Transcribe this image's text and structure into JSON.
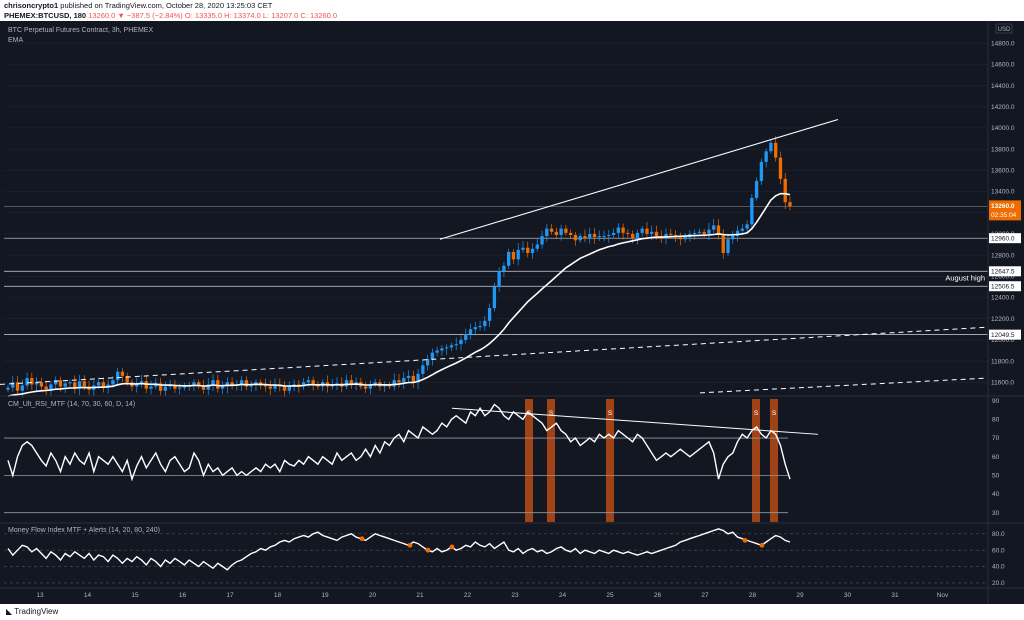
{
  "header": {
    "line1_user": "chrisoncrypto1",
    "line1_rest": "published on TradingView.com, October 28, 2020 13:25:03 CET",
    "line2_symbol": "PHEMEX:BTCUSD, 180",
    "line2_price": "13260.0",
    "line2_change": "▼ −387.5 (−2.84%)",
    "line2_ohlc": "O: 13335.0  H: 13374.0  L: 13207.0  C: 13260.0"
  },
  "footer": {
    "logo_text": "TradingView"
  },
  "colors": {
    "bg": "#131722",
    "up": "#2196f3",
    "down": "#ef6c00",
    "line": "#ffffff",
    "grid": "#1f2433",
    "axis_text": "#b2b5be",
    "signal": "#b84a14",
    "mfi_dot": "#ef6c00"
  },
  "chart_data": [
    {
      "type": "candlestick",
      "title": "BTC Perpetual Futures Contract, 3h, PHEMEX",
      "subtitle": "EMA",
      "currency_label": "USD",
      "ylim": [
        11480,
        15000
      ],
      "y_ticks": [
        11600,
        11800,
        12000,
        12200,
        12400,
        12600,
        12800,
        13000,
        13200,
        13400,
        13600,
        13800,
        14000,
        14200,
        14400,
        14600,
        14800
      ],
      "x_ticks": [
        "13",
        "14",
        "15",
        "16",
        "17",
        "18",
        "19",
        "20",
        "21",
        "22",
        "23",
        "24",
        "25",
        "26",
        "27",
        "28",
        "29",
        "30",
        "31",
        "Nov"
      ],
      "last_price": "13260.0",
      "countdown": "02:35:04",
      "horizontal_levels": [
        "12960.0",
        "12647.5",
        "12506.5",
        "12049.5"
      ],
      "annotation": "August high",
      "close": [
        11550,
        11600,
        11520,
        11570,
        11640,
        11580,
        11600,
        11560,
        11530,
        11580,
        11620,
        11560,
        11590,
        11600,
        11540,
        11610,
        11560,
        11530,
        11570,
        11600,
        11550,
        11580,
        11620,
        11700,
        11660,
        11600,
        11560,
        11580,
        11610,
        11540,
        11560,
        11590,
        11520,
        11560,
        11580,
        11540,
        11550,
        11560,
        11570,
        11600,
        11560,
        11530,
        11580,
        11620,
        11540,
        11560,
        11600,
        11570,
        11580,
        11620,
        11560,
        11580,
        11600,
        11570,
        11560,
        11540,
        11580,
        11560,
        11520,
        11560,
        11580,
        11560,
        11600,
        11620,
        11580,
        11560,
        11600,
        11560,
        11570,
        11590,
        11560,
        11620,
        11580,
        11600,
        11560,
        11540,
        11580,
        11600,
        11560,
        11580,
        11560,
        11620,
        11600,
        11640,
        11660,
        11600,
        11680,
        11760,
        11820,
        11880,
        11900,
        11920,
        11930,
        11950,
        11960,
        12000,
        12050,
        12100,
        12120,
        12130,
        12180,
        12300,
        12500,
        12650,
        12700,
        12830,
        12760,
        12850,
        12870,
        12820,
        12860,
        12900,
        12980,
        13050,
        13020,
        12990,
        13050,
        13010,
        12990,
        12940,
        12980,
        12960,
        13000,
        12970,
        12980,
        12980,
        12990,
        13010,
        13060,
        13010,
        13000,
        12960,
        13010,
        13050,
        13000,
        13020,
        12980,
        12960,
        13000,
        12990,
        12970,
        12950,
        12970,
        13000,
        13010,
        13020,
        13000,
        13040,
        13080,
        12990,
        12820,
        12950,
        12980,
        13030,
        13050,
        13090,
        13340,
        13500,
        13680,
        13780,
        13860,
        13720,
        13520,
        13300,
        13260
      ],
      "ema": [
        11470,
        11480,
        11485,
        11490,
        11500,
        11508,
        11515,
        11520,
        11522,
        11528,
        11535,
        11538,
        11542,
        11546,
        11546,
        11550,
        11550,
        11549,
        11551,
        11554,
        11554,
        11557,
        11563,
        11576,
        11586,
        11588,
        11585,
        11585,
        11588,
        11583,
        11581,
        11582,
        11575,
        11573,
        11574,
        11570,
        11568,
        11567,
        11567,
        11571,
        11570,
        11565,
        11567,
        11574,
        11569,
        11568,
        11572,
        11572,
        11573,
        11580,
        11577,
        11578,
        11581,
        11580,
        11578,
        11573,
        11574,
        11572,
        11566,
        11565,
        11567,
        11566,
        11570,
        11577,
        11577,
        11575,
        11578,
        11576,
        11575,
        11577,
        11575,
        11581,
        11581,
        11583,
        11580,
        11574,
        11575,
        11578,
        11576,
        11576,
        11575,
        11580,
        11583,
        11590,
        11598,
        11598,
        11608,
        11626,
        11647,
        11672,
        11697,
        11720,
        11741,
        11762,
        11782,
        11805,
        11830,
        11857,
        11884,
        11906,
        11932,
        11966,
        12007,
        12050,
        12100,
        12160,
        12210,
        12260,
        12310,
        12360,
        12400,
        12440,
        12480,
        12520,
        12560,
        12600,
        12640,
        12680,
        12710,
        12740,
        12770,
        12790,
        12810,
        12830,
        12850,
        12865,
        12880,
        12890,
        12905,
        12915,
        12925,
        12935,
        12945,
        12955,
        12960,
        12965,
        12970,
        12970,
        12972,
        12974,
        12976,
        12978,
        12980,
        12982,
        12984,
        12986,
        12988,
        12990,
        12995,
        13000,
        12995,
        12990,
        12992,
        12995,
        13000,
        13010,
        13050,
        13110,
        13180,
        13250,
        13320,
        13360,
        13380,
        13380,
        13370
      ]
    },
    {
      "type": "line",
      "title": "CM_Ult_RSI_MTF (14, 70, 30, 60, D, 14)",
      "ylim": [
        25,
        92
      ],
      "y_ticks": [
        30,
        40,
        50,
        60,
        70,
        80,
        90
      ],
      "levels": [
        70,
        50,
        30
      ],
      "signal_label": "S",
      "values": [
        58,
        50,
        60,
        66,
        68,
        66,
        62,
        58,
        55,
        62,
        58,
        52,
        60,
        56,
        62,
        58,
        56,
        62,
        52,
        60,
        58,
        56,
        60,
        56,
        52,
        58,
        48,
        55,
        60,
        54,
        58,
        62,
        56,
        52,
        58,
        60,
        56,
        52,
        54,
        62,
        58,
        50,
        56,
        52,
        54,
        50,
        52,
        54,
        50,
        52,
        50,
        52,
        54,
        52,
        56,
        54,
        56,
        52,
        58,
        56,
        55,
        58,
        56,
        60,
        58,
        56,
        60,
        58,
        56,
        62,
        58,
        60,
        62,
        58,
        60,
        64,
        60,
        66,
        62,
        68,
        66,
        70,
        72,
        68,
        74,
        72,
        70,
        76,
        74,
        72,
        74,
        78,
        76,
        80,
        82,
        80,
        78,
        84,
        82,
        86,
        82,
        84,
        88,
        86,
        82,
        80,
        84,
        82,
        80,
        84,
        82,
        80,
        78,
        74,
        76,
        78,
        74,
        72,
        68,
        70,
        66,
        68,
        70,
        68,
        72,
        70,
        72,
        70,
        74,
        72,
        70,
        68,
        72,
        70,
        66,
        62,
        58,
        60,
        62,
        60,
        62,
        64,
        62,
        60,
        62,
        64,
        66,
        68,
        62,
        48,
        56,
        60,
        62,
        68,
        72,
        70,
        74,
        76,
        72,
        70,
        74,
        72,
        66,
        56,
        48
      ]
    },
    {
      "type": "line",
      "title": "Money Flow Index MTF + Alerts (14, 20, 80, 240)",
      "ylim": [
        15,
        92
      ],
      "y_ticks": [
        20.0,
        40.0,
        60.0,
        80.0
      ],
      "levels": [
        80,
        60,
        40,
        20
      ],
      "values": [
        62,
        54,
        60,
        66,
        64,
        58,
        62,
        56,
        50,
        58,
        54,
        48,
        56,
        52,
        58,
        54,
        50,
        56,
        48,
        54,
        52,
        46,
        54,
        50,
        44,
        50,
        46,
        52,
        48,
        42,
        50,
        46,
        40,
        48,
        44,
        50,
        46,
        42,
        48,
        44,
        40,
        46,
        42,
        38,
        44,
        40,
        36,
        42,
        46,
        48,
        52,
        56,
        58,
        62,
        60,
        64,
        66,
        70,
        72,
        70,
        74,
        76,
        78,
        76,
        80,
        82,
        78,
        76,
        74,
        72,
        76,
        78,
        80,
        76,
        74,
        72,
        76,
        80,
        78,
        76,
        74,
        72,
        70,
        68,
        66,
        70,
        68,
        64,
        60,
        58,
        62,
        58,
        60,
        64,
        60,
        62,
        66,
        64,
        70,
        66,
        64,
        68,
        62,
        66,
        70,
        60,
        58,
        62,
        56,
        60,
        62,
        58,
        60,
        56,
        58,
        62,
        64,
        60,
        58,
        62,
        56,
        60,
        58,
        56,
        60,
        58,
        56,
        60,
        58,
        56,
        58,
        56,
        54,
        56,
        58,
        56,
        58,
        60,
        62,
        64,
        66,
        70,
        72,
        74,
        76,
        78,
        80,
        82,
        84,
        86,
        84,
        80,
        82,
        76,
        74,
        72,
        70,
        68,
        66,
        70,
        74,
        78,
        76,
        72,
        70
      ]
    }
  ]
}
